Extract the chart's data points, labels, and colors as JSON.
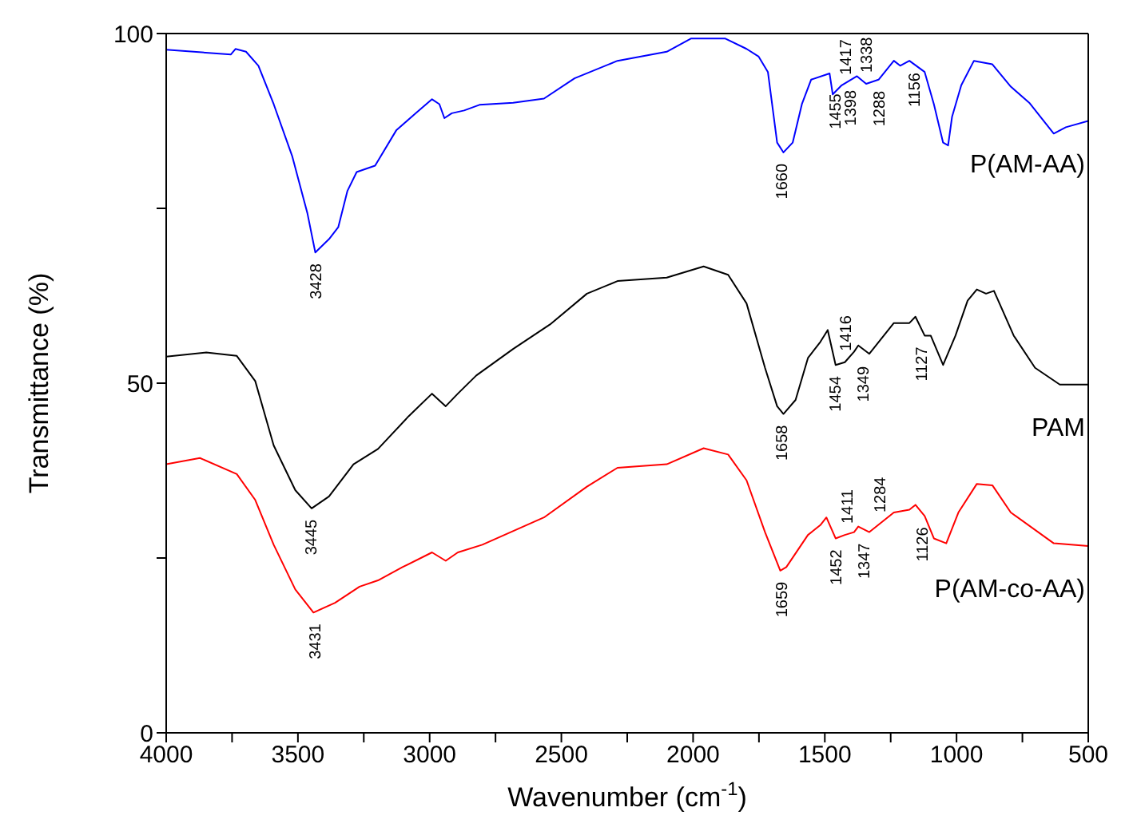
{
  "chart_data": {
    "type": "line",
    "xlabel": "Wavenumber (cm$^{-1}$)",
    "ylabel": "Transmittance (%)",
    "xlim": [
      4000,
      500
    ],
    "ylim": [
      0,
      100
    ],
    "xticks": [
      4000,
      {
        "value": 3750,
        "label": null
      },
      3500,
      {
        "value": 3250,
        "label": null
      },
      3000,
      {
        "value": 2750,
        "label": null
      },
      2500,
      {
        "value": 2250,
        "label": null
      },
      2000,
      {
        "value": 1750,
        "label": null
      },
      1500,
      {
        "value": 1250,
        "label": null
      },
      1000,
      {
        "value": 750,
        "label": null
      },
      500
    ],
    "yticks": [
      0,
      {
        "value": 25,
        "label": null
      },
      50,
      {
        "value": 75,
        "label": null
      },
      100
    ],
    "legend": false,
    "marker": "none",
    "line_style": "solid",
    "series": [
      {
        "name": "P(AM-AA)",
        "color": "#0000ff",
        "x": [
          4000,
          3755,
          3737,
          3697,
          3650,
          3592,
          3522,
          3464,
          3434,
          3382,
          3347,
          3312,
          3277,
          3207,
          3126,
          3056,
          2991,
          2963,
          2944,
          2916,
          2869,
          2811,
          2683,
          2566,
          2450,
          2287,
          2100,
          2007,
          1879,
          1797,
          1751,
          1716,
          1681,
          1657,
          1622,
          1587,
          1552,
          1482,
          1470,
          1436,
          1378,
          1343,
          1296,
          1238,
          1214,
          1179,
          1121,
          1086,
          1051,
          1032,
          1017,
          982,
          934,
          864,
          794,
          724,
          631,
          585,
          500
        ],
        "values": [
          97.7,
          97.0,
          97.8,
          97.4,
          95.4,
          89.9,
          82.5,
          74.3,
          68.7,
          70.6,
          72.3,
          77.5,
          80.2,
          81.1,
          86.2,
          88.5,
          90.6,
          89.9,
          87.9,
          88.6,
          89.0,
          89.8,
          90.1,
          90.7,
          93.6,
          96.1,
          97.4,
          99.3,
          99.3,
          97.8,
          96.7,
          94.5,
          84.4,
          83.0,
          84.4,
          89.9,
          93.4,
          94.3,
          91.3,
          92.6,
          93.9,
          92.8,
          93.4,
          96.1,
          95.4,
          96.1,
          94.5,
          89.9,
          84.4,
          84.0,
          88.1,
          92.6,
          96.1,
          95.6,
          92.4,
          90.1,
          85.7,
          86.6,
          87.5
        ]
      },
      {
        "name": "PAM",
        "color": "#000000",
        "x": [
          4000,
          3848,
          3732,
          3662,
          3592,
          3510,
          3448,
          3382,
          3289,
          3196,
          3079,
          2991,
          2939,
          2893,
          2823,
          2683,
          2543,
          2403,
          2287,
          2100,
          1960,
          1867,
          1797,
          1727,
          1681,
          1657,
          1611,
          1564,
          1517,
          1489,
          1459,
          1424,
          1389,
          1373,
          1331,
          1238,
          1179,
          1156,
          1121,
          1098,
          1051,
          1004,
          958,
          923,
          888,
          858,
          783,
          702,
          608,
          500
        ],
        "values": [
          53.8,
          54.4,
          53.9,
          50.3,
          41.1,
          34.7,
          32.1,
          33.8,
          38.4,
          40.6,
          45.3,
          48.5,
          46.7,
          48.5,
          51.1,
          54.9,
          58.4,
          62.8,
          64.6,
          65.1,
          66.7,
          65.5,
          61.4,
          52.2,
          46.7,
          45.6,
          47.6,
          53.6,
          55.9,
          57.6,
          52.6,
          53.0,
          54.5,
          55.4,
          54.2,
          58.6,
          58.6,
          59.5,
          56.8,
          56.8,
          52.6,
          56.8,
          61.8,
          63.4,
          62.8,
          63.2,
          56.8,
          52.2,
          49.8,
          49.8
        ]
      },
      {
        "name": "P(AM-co-AA)",
        "color": "#ff0000",
        "x": [
          4000,
          3872,
          3732,
          3662,
          3592,
          3510,
          3441,
          3359,
          3266,
          3196,
          3103,
          2991,
          2939,
          2893,
          2800,
          2566,
          2403,
          2287,
          2100,
          1960,
          1867,
          1797,
          1727,
          1669,
          1646,
          1564,
          1517,
          1494,
          1459,
          1424,
          1389,
          1373,
          1331,
          1238,
          1179,
          1156,
          1121,
          1086,
          1039,
          993,
          923,
          864,
          794,
          631,
          500
        ],
        "values": [
          38.4,
          39.3,
          37.0,
          33.3,
          26.9,
          20.5,
          17.2,
          18.6,
          20.9,
          21.8,
          23.7,
          25.8,
          24.6,
          25.8,
          26.9,
          30.8,
          35.2,
          37.9,
          38.4,
          40.7,
          39.8,
          36.1,
          28.7,
          23.2,
          23.7,
          28.3,
          29.7,
          30.8,
          27.8,
          28.3,
          28.7,
          29.5,
          28.7,
          31.5,
          31.9,
          32.6,
          31.0,
          27.8,
          27.1,
          31.5,
          35.6,
          35.4,
          31.5,
          27.1,
          26.7
        ]
      }
    ],
    "annotations": [
      {
        "text": "3428",
        "x": 3428,
        "y": 68.7
      },
      {
        "text": "1660",
        "x": 1660,
        "y": 83.0
      },
      {
        "text": "1455",
        "x": 1455,
        "y": 93.0
      },
      {
        "text": "1417",
        "x": 1417,
        "y": 92.5
      },
      {
        "text": "1398",
        "x": 1398,
        "y": 93.5
      },
      {
        "text": "1338",
        "x": 1338,
        "y": 92.8
      },
      {
        "text": "1288",
        "x": 1288,
        "y": 93.4
      },
      {
        "text": "1156",
        "x": 1156,
        "y": 96.0
      },
      {
        "text": "3445",
        "x": 3445,
        "y": 32.1
      },
      {
        "text": "1658",
        "x": 1658,
        "y": 45.6
      },
      {
        "text": "1454",
        "x": 1454,
        "y": 52.6
      },
      {
        "text": "1416",
        "x": 1416,
        "y": 53.0
      },
      {
        "text": "1349",
        "x": 1349,
        "y": 54.0
      },
      {
        "text": "1127",
        "x": 1127,
        "y": 56.8
      },
      {
        "text": "3431",
        "x": 3431,
        "y": 17.2
      },
      {
        "text": "1659",
        "x": 1659,
        "y": 23.2
      },
      {
        "text": "1452",
        "x": 1452,
        "y": 27.8
      },
      {
        "text": "1411",
        "x": 1411,
        "y": 28.3
      },
      {
        "text": "1347",
        "x": 1347,
        "y": 28.7
      },
      {
        "text": "1284",
        "x": 1284,
        "y": 29.9
      },
      {
        "text": "1126",
        "x": 1126,
        "y": 31.0
      }
    ]
  }
}
